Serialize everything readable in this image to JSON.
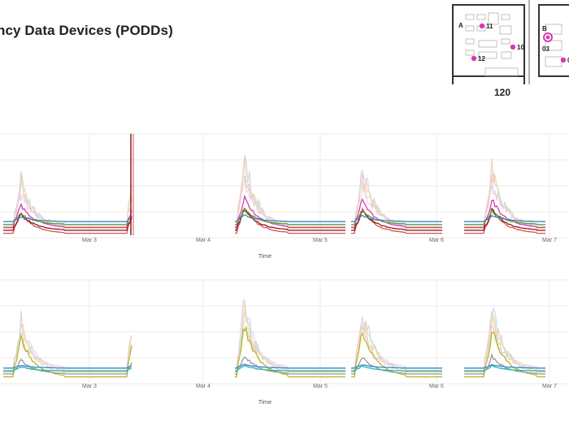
{
  "title": "ncy Data Devices (PODDs)",
  "floorplan": {
    "room_number": "120",
    "zone_a": "A",
    "zone_b": "B",
    "sensors": [
      {
        "label": "11"
      },
      {
        "label": "10"
      },
      {
        "label": "12"
      },
      {
        "label": "03"
      },
      {
        "label": "0"
      }
    ]
  },
  "colors": {
    "red": "#d9534f",
    "maroon": "#8b1a1a",
    "pink": "#d63ab5",
    "green": "#5aa02c",
    "blue": "#3a86c8",
    "olive": "#b5b81e",
    "teal": "#22b3b3",
    "grid": "#ebebeb",
    "faint_blue": "#c9d6ee",
    "faint_orange": "#f6c9a3",
    "faint_green": "#cfe6b8",
    "faint_pink": "#f4c4e6",
    "gray": "#9a9a9a"
  },
  "chart_data": [
    {
      "type": "line",
      "xlabel": "Time",
      "x_ticks": [
        "Mar 3",
        "Mar 4",
        "Mar 5",
        "Mar 6",
        "Mar 7"
      ],
      "grid": true,
      "legend": "none",
      "panel": "top"
    },
    {
      "type": "line",
      "xlabel": "Time",
      "x_ticks": [
        "Mar 3",
        "Mar 4",
        "Mar 5",
        "Mar 6",
        "Mar 7"
      ],
      "grid": true,
      "legend": "none",
      "panel": "bottom"
    }
  ]
}
